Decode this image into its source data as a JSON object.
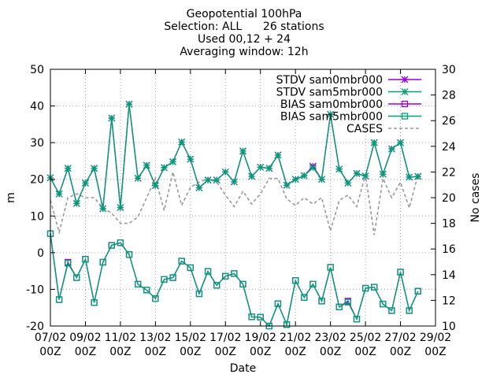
{
  "chart_data": {
    "type": "line",
    "title_lines": [
      "Geopotential 100hPa",
      "Selection: ALL      26 stations",
      "Used 00,12 + 24",
      "Averaging window: 12h"
    ],
    "xlabel": "Date",
    "ylabel": "m",
    "y2label": "No cases",
    "x_start": "2018-02-07 00Z",
    "x_step_hours": 12,
    "x_range": [
      "2018-02-07 00Z",
      "2018-03-01 00Z"
    ],
    "x_tick_labels": [
      [
        "07/02",
        "00Z"
      ],
      [
        "09/02",
        "00Z"
      ],
      [
        "11/02",
        "00Z"
      ],
      [
        "13/02",
        "00Z"
      ],
      [
        "15/02",
        "00Z"
      ],
      [
        "17/02",
        "00Z"
      ],
      [
        "19/02",
        "00Z"
      ],
      [
        "21/02",
        "00Z"
      ],
      [
        "23/02",
        "00Z"
      ],
      [
        "25/02",
        "00Z"
      ],
      [
        "27/02",
        "00Z"
      ],
      [
        "29/02",
        "00Z"
      ]
    ],
    "ylim": [
      -20,
      50
    ],
    "y_ticks": [
      -20,
      -10,
      0,
      10,
      20,
      30,
      40,
      50
    ],
    "y2lim": [
      10,
      30
    ],
    "y2_ticks": [
      10,
      12,
      14,
      16,
      18,
      20,
      22,
      24,
      26,
      28,
      30
    ],
    "grid": true,
    "legend_position": "top-right",
    "series": [
      {
        "name": "STDV sam0mbr000",
        "color": "#9400d3",
        "marker": "star",
        "axis": "y",
        "values": [
          20.4,
          16,
          23,
          13.4,
          19,
          23,
          12,
          36.7,
          12.3,
          40.5,
          20.3,
          23.8,
          18.3,
          23.2,
          24.8,
          30.2,
          25.5,
          17.7,
          19.8,
          19.8,
          22,
          19.3,
          27.7,
          20.8,
          23.3,
          23,
          26.6,
          18.4,
          20,
          21,
          23.6,
          20,
          37.7,
          22.8,
          19,
          21.6,
          20.9,
          30,
          21.4,
          28.3,
          30,
          20.6,
          20.8
        ]
      },
      {
        "name": "STDV sam5mbr000",
        "color": "#009e73",
        "marker": "star",
        "axis": "y",
        "values": [
          20.4,
          16,
          23,
          13.4,
          19,
          23,
          12,
          36.7,
          12.3,
          40.5,
          20.3,
          23.8,
          18.3,
          23.2,
          24.8,
          30.2,
          25.5,
          17.7,
          19.8,
          19.8,
          22,
          19.3,
          27.7,
          20.8,
          23.3,
          23,
          26.6,
          18.4,
          20,
          21,
          23.2,
          20,
          37.7,
          22.8,
          19,
          21.6,
          20.9,
          30,
          21.4,
          28.3,
          30,
          20.6,
          20.8
        ]
      },
      {
        "name": "BIAS sam0mbr000",
        "color": "#9400d3",
        "marker": "square",
        "axis": "y",
        "values": [
          5.2,
          -12.8,
          -2.6,
          -6.8,
          -1.8,
          -13.6,
          -2.6,
          2,
          2.7,
          -0.5,
          -8.6,
          -10.2,
          -12.5,
          -7.3,
          -6.8,
          -2.3,
          -4.1,
          -11.2,
          -5.1,
          -8.9,
          -6.4,
          -5.7,
          -8.6,
          -17.5,
          -17.6,
          -20,
          -13.9,
          -19.6,
          -7.6,
          -12.2,
          -8.6,
          -13.2,
          -4,
          -14.8,
          -13.2,
          -18.1,
          -9.7,
          -9.4,
          -14,
          -15.8,
          -5.3,
          -15.8,
          -10.5
        ]
      },
      {
        "name": "BIAS sam5mbr000",
        "color": "#009e73",
        "marker": "square",
        "axis": "y",
        "values": [
          5.2,
          -12.8,
          -2.9,
          -6.8,
          -1.8,
          -13.6,
          -2.6,
          2,
          2.7,
          -0.5,
          -8.6,
          -10.2,
          -12.5,
          -7.3,
          -6.8,
          -2.3,
          -4.1,
          -11.2,
          -5.1,
          -8.9,
          -6.4,
          -5.7,
          -8.6,
          -17.5,
          -17.6,
          -20,
          -13.9,
          -19.6,
          -7.6,
          -12.2,
          -8.6,
          -13.2,
          -4,
          -14.8,
          -13.5,
          -18.1,
          -9.7,
          -9.4,
          -14,
          -15.8,
          -5.3,
          -15.8,
          -10.5
        ]
      },
      {
        "name": "CASES",
        "color": "#999999",
        "marker": "none",
        "dashed": true,
        "axis": "y2",
        "values": [
          19.8,
          17.3,
          20,
          20.3,
          20,
          20,
          19.2,
          18.8,
          18,
          18,
          18.5,
          20,
          21.5,
          19,
          22,
          19.4,
          20.8,
          21.2,
          21.5,
          21.2,
          20.2,
          19.3,
          20.5,
          19.5,
          20.3,
          21.5,
          21.5,
          19.9,
          19.4,
          20,
          19.5,
          20,
          17.4,
          19.8,
          20.2,
          19.3,
          21.8,
          17.1,
          21.5,
          20,
          21.2,
          19.2,
          21.8
        ]
      }
    ]
  }
}
